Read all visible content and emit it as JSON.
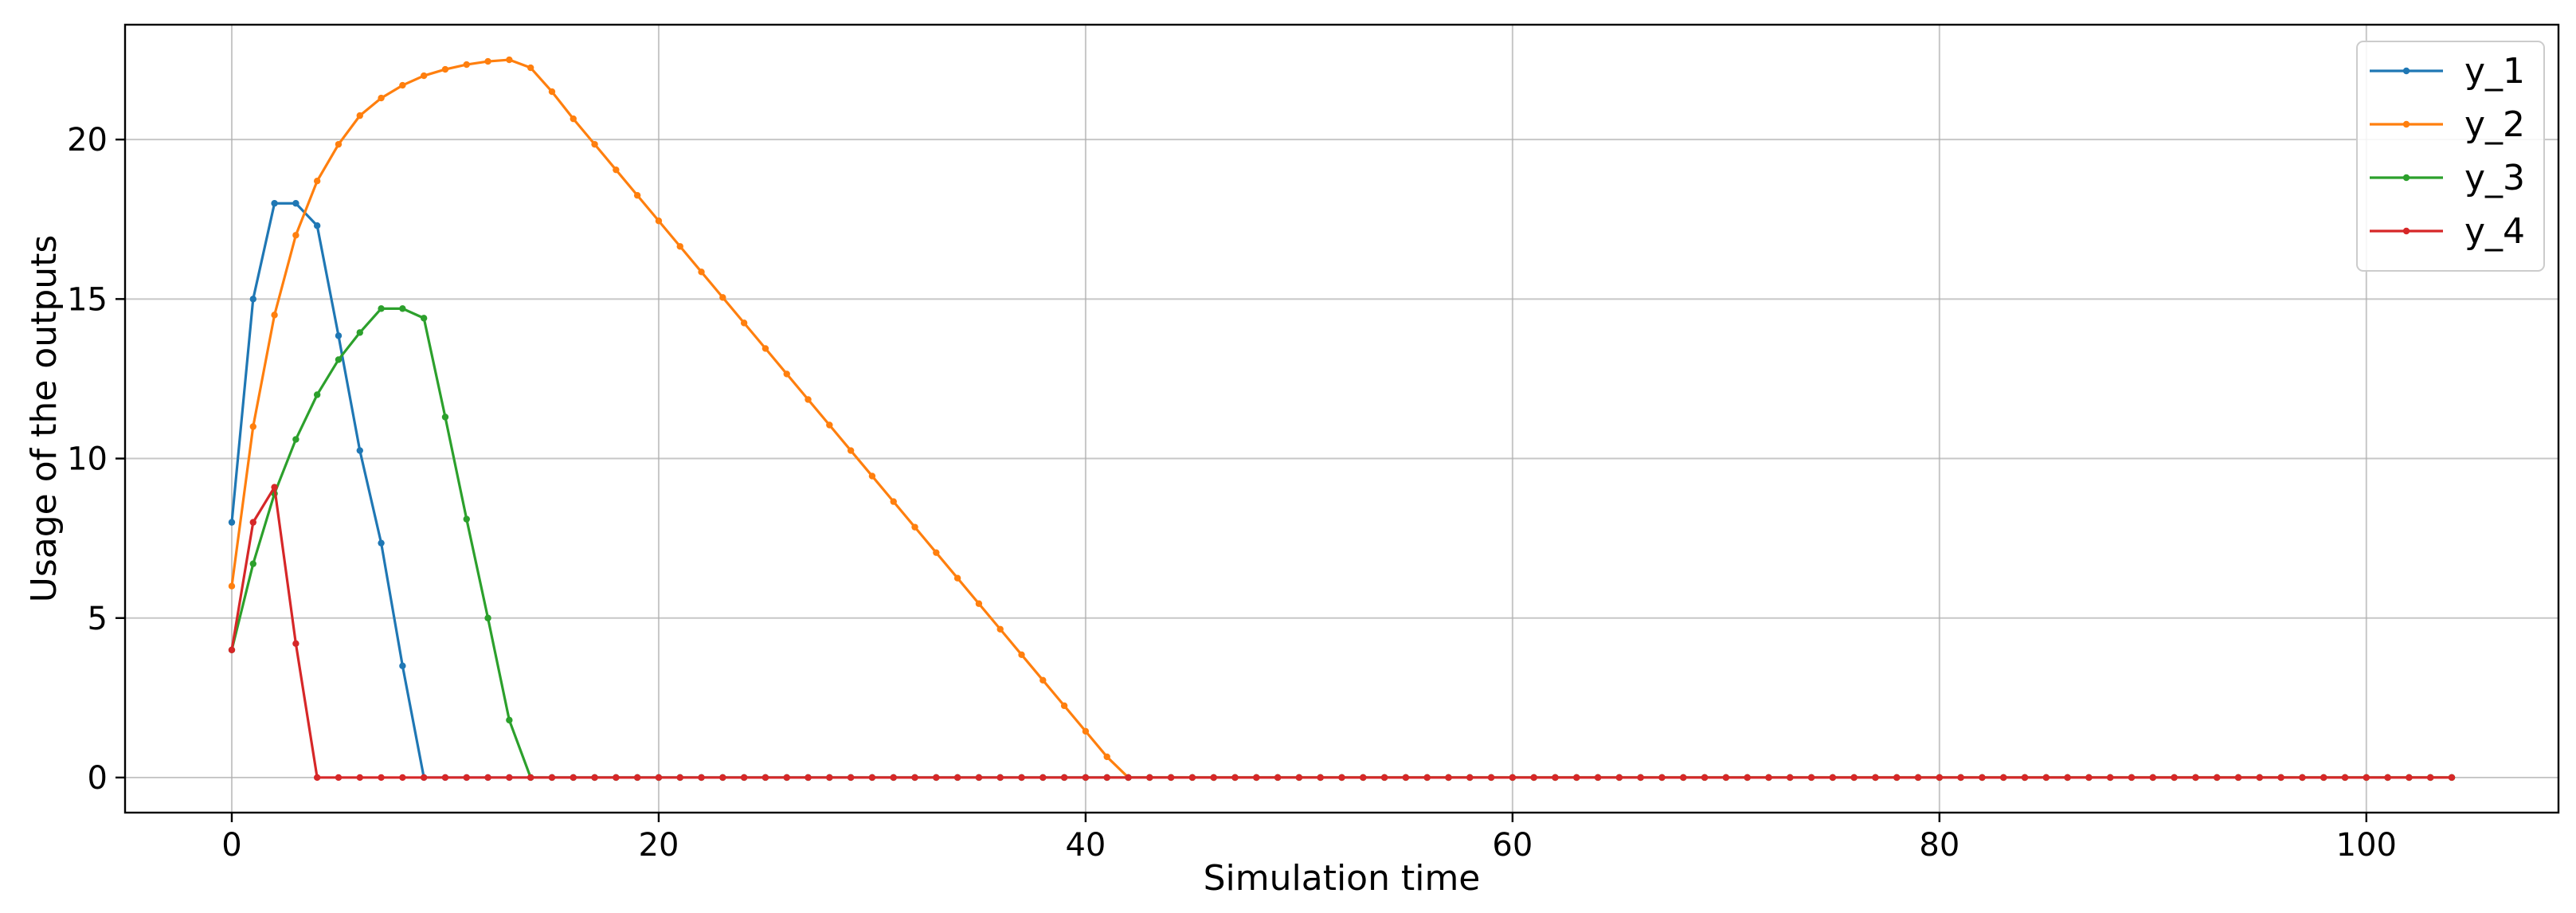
{
  "chart_data": {
    "type": "line",
    "title": "",
    "xlabel": "Simulation time",
    "ylabel": "Usage of the outputs",
    "xlim": [
      -5,
      109
    ],
    "ylim": [
      -1.1,
      23.6
    ],
    "xticks": [
      0,
      20,
      40,
      60,
      80,
      100
    ],
    "yticks": [
      0,
      5,
      10,
      15,
      20
    ],
    "grid": true,
    "legend_position": "top-right",
    "x_start": 0,
    "x_end": 104,
    "series": [
      {
        "name": "y_1",
        "color": "#1f77b4",
        "values": [
          8,
          15,
          18,
          18,
          17.3,
          13.85,
          10.25,
          7.35,
          3.5,
          0
        ]
      },
      {
        "name": "y_2",
        "color": "#ff7f0e",
        "values": [
          6,
          11,
          14.5,
          17,
          18.7,
          19.85,
          20.75,
          21.3,
          21.7,
          22,
          22.2,
          22.35,
          22.45,
          22.5,
          22.25,
          21.5,
          20.65,
          19.85,
          19.05,
          18.25,
          17.45,
          16.65,
          15.85,
          15.05,
          14.25,
          13.45,
          12.65,
          11.85,
          11.05,
          10.25,
          9.45,
          8.65,
          7.85,
          7.05,
          6.25,
          5.45,
          4.65,
          3.85,
          3.05,
          2.25,
          1.45,
          0.65,
          0
        ]
      },
      {
        "name": "y_3",
        "color": "#2ca02c",
        "values": [
          4,
          6.7,
          8.9,
          10.6,
          12,
          13.1,
          13.95,
          14.7,
          14.7,
          14.4,
          11.3,
          8.1,
          5,
          1.8,
          0
        ]
      },
      {
        "name": "y_4",
        "color": "#d62728",
        "values": [
          4,
          8,
          9.1,
          4.2,
          0
        ]
      }
    ]
  }
}
